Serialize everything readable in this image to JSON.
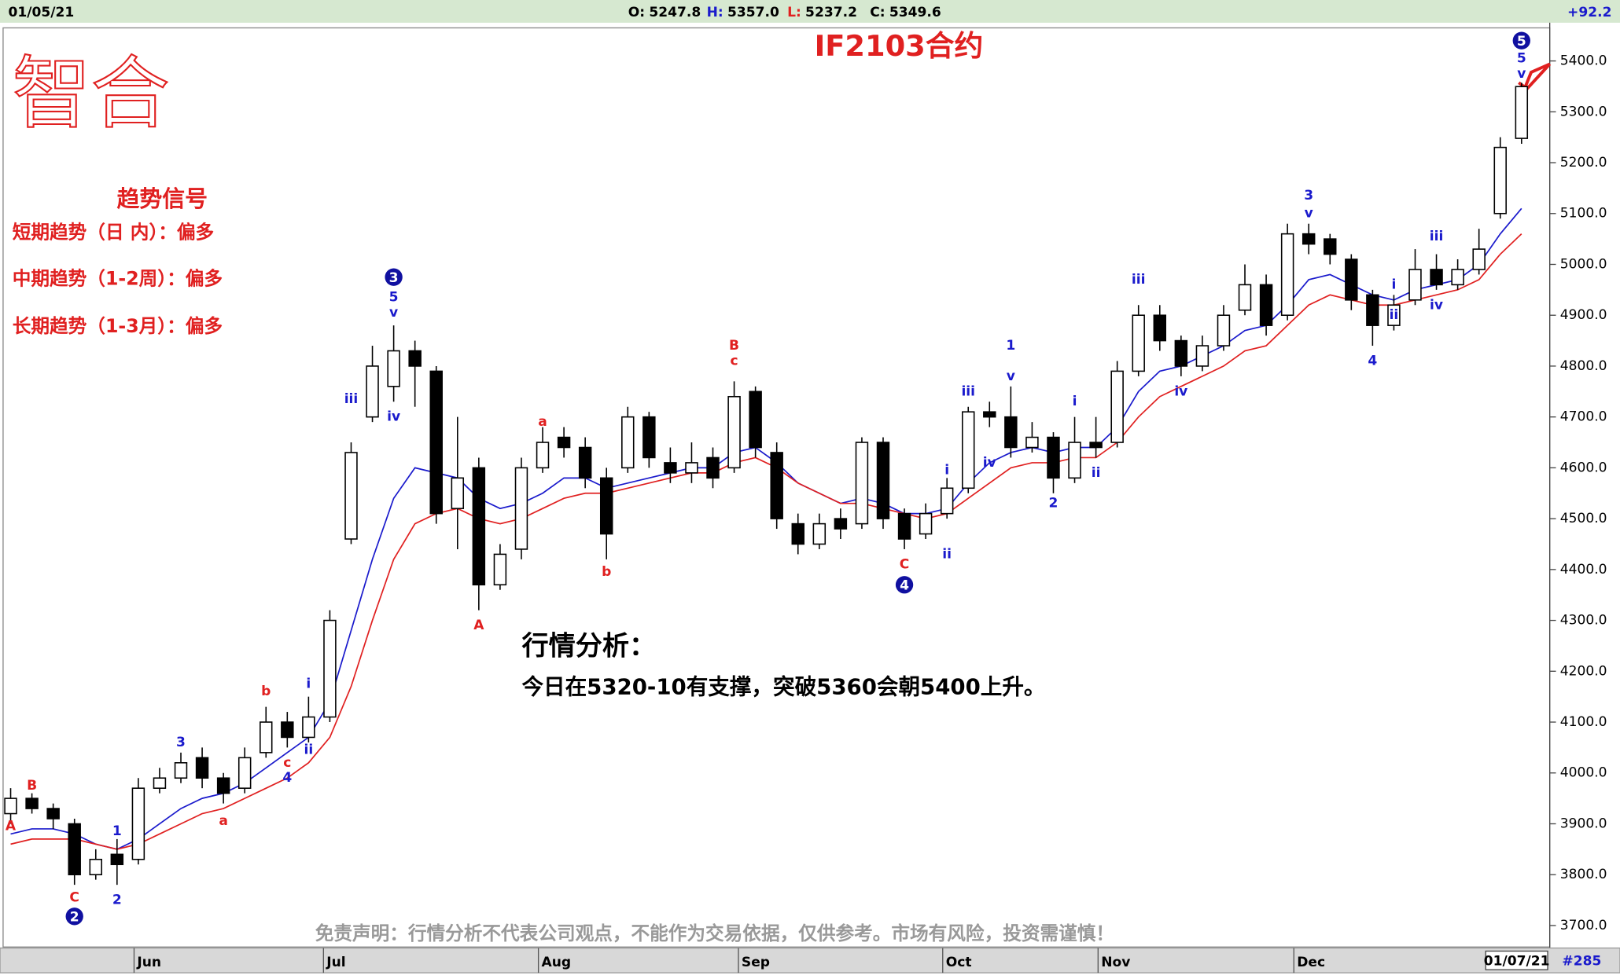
{
  "header": {
    "date": "01/05/21",
    "items": [
      {
        "label": "O:",
        "value": "5247.8"
      },
      {
        "label": "H:",
        "value": "5357.0"
      },
      {
        "label": "L:",
        "value": "5237.2"
      },
      {
        "label": "C:",
        "value": "5349.6"
      }
    ],
    "change": "+92.2"
  },
  "logo": "智合",
  "signals": {
    "title": "趋势信号",
    "rows": [
      "短期趋势（日 内）：偏多",
      "中期趋势（1-2周）：偏多",
      "长期趋势（1-3月）：偏多"
    ]
  },
  "analysis": {
    "title": "行情分析：",
    "text": "今日在5320-10有支撑，突破5360会朝5400上升。"
  },
  "disclaimer": "免责声明：行情分析不代表公司观点，不能作为交易依据，仅供参考。市场有风险，投资需谨慎！",
  "footer": {
    "date": "01/07/21",
    "count": "#285"
  },
  "chart_data": {
    "type": "candlestick",
    "title": "IF2103合约",
    "up_color": "#ffffff",
    "down_color": "#000000",
    "xlim": [
      -0.5,
      71.5
    ],
    "xticks": [
      {
        "value": 5.8,
        "label": "Jun"
      },
      {
        "value": 14.7,
        "label": "Jul"
      },
      {
        "value": 24.8,
        "label": "Aug"
      },
      {
        "value": 34.2,
        "label": "Sep"
      },
      {
        "value": 43.8,
        "label": "Oct"
      },
      {
        "value": 51.1,
        "label": "Nov"
      },
      {
        "value": 60.3,
        "label": "Dec"
      }
    ],
    "ylim": [
      3672,
      5463
    ],
    "yticks": [
      {
        "value": 3700,
        "label": "3700.0"
      },
      {
        "value": 3800,
        "label": "3800.0"
      },
      {
        "value": 3900,
        "label": "3900.0"
      },
      {
        "value": 4000,
        "label": "4000.0"
      },
      {
        "value": 4100,
        "label": "4100.0"
      },
      {
        "value": 4200,
        "label": "4200.0"
      },
      {
        "value": 4300,
        "label": "4300.0"
      },
      {
        "value": 4400,
        "label": "4400.0"
      },
      {
        "value": 4500,
        "label": "4500.0"
      },
      {
        "value": 4600,
        "label": "4600.0"
      },
      {
        "value": 4700,
        "label": "4700.0"
      },
      {
        "value": 4800,
        "label": "4800.0"
      },
      {
        "value": 4900,
        "label": "4900.0"
      },
      {
        "value": 5000,
        "label": "5000.0"
      },
      {
        "value": 5100,
        "label": "5100.0"
      },
      {
        "value": 5200,
        "label": "5200.0"
      },
      {
        "value": 5300,
        "label": "5300.0"
      },
      {
        "value": 5400,
        "label": "5400.0"
      }
    ],
    "open": [
      3920,
      3950,
      3930,
      3900,
      3800,
      3840,
      3830,
      3970,
      3990,
      4030,
      3990,
      3970,
      4040,
      4100,
      4070,
      4110,
      4460,
      4700,
      4760,
      4830,
      4790,
      4520,
      4600,
      4370,
      4440,
      4600,
      4660,
      4640,
      4580,
      4600,
      4700,
      4610,
      4590,
      4620,
      4600,
      4750,
      4630,
      4490,
      4450,
      4500,
      4490,
      4650,
      4510,
      4470,
      4510,
      4560,
      4710,
      4700,
      4640,
      4660,
      4580,
      4650,
      4650,
      4790,
      4900,
      4850,
      4800,
      4840,
      4910,
      4960,
      4900,
      5060,
      5050,
      5010,
      4940,
      4880,
      4930,
      4990,
      4960,
      4990,
      5100,
      5247.8
    ],
    "high": [
      3970,
      3960,
      3940,
      3910,
      3850,
      3870,
      3990,
      4010,
      4040,
      4050,
      4000,
      4050,
      4130,
      4120,
      4150,
      4320,
      4650,
      4840,
      4880,
      4850,
      4800,
      4700,
      4620,
      4450,
      4620,
      4680,
      4680,
      4660,
      4600,
      4720,
      4710,
      4640,
      4650,
      4640,
      4770,
      4760,
      4650,
      4510,
      4510,
      4520,
      4660,
      4660,
      4520,
      4530,
      4580,
      4720,
      4730,
      4760,
      4690,
      4670,
      4700,
      4700,
      4810,
      4920,
      4920,
      4860,
      4860,
      4920,
      5000,
      4980,
      5080,
      5080,
      5060,
      5020,
      4950,
      4940,
      5030,
      5020,
      5010,
      5070,
      5250,
      5357.0
    ],
    "low": [
      3900,
      3920,
      3890,
      3780,
      3790,
      3780,
      3820,
      3960,
      3980,
      3970,
      3940,
      3960,
      4030,
      4050,
      4060,
      4100,
      4450,
      4690,
      4730,
      4720,
      4490,
      4440,
      4320,
      4360,
      4420,
      4590,
      4620,
      4560,
      4420,
      4590,
      4600,
      4570,
      4570,
      4560,
      4590,
      4620,
      4480,
      4430,
      4440,
      4460,
      4480,
      4480,
      4440,
      4460,
      4500,
      4550,
      4680,
      4620,
      4630,
      4550,
      4570,
      4620,
      4640,
      4780,
      4830,
      4780,
      4790,
      4830,
      4900,
      4860,
      4890,
      5020,
      5000,
      4910,
      4840,
      4870,
      4920,
      4950,
      4950,
      4980,
      5090,
      5237.2
    ],
    "close": [
      3950,
      3930,
      3910,
      3800,
      3830,
      3820,
      3970,
      3990,
      4020,
      3990,
      3960,
      4030,
      4100,
      4070,
      4110,
      4300,
      4630,
      4800,
      4830,
      4800,
      4510,
      4580,
      4370,
      4430,
      4600,
      4650,
      4640,
      4580,
      4470,
      4700,
      4620,
      4590,
      4610,
      4580,
      4740,
      4640,
      4500,
      4450,
      4490,
      4480,
      4650,
      4500,
      4460,
      4510,
      4560,
      4710,
      4700,
      4640,
      4660,
      4580,
      4650,
      4640,
      4790,
      4900,
      4850,
      4800,
      4840,
      4900,
      4960,
      4880,
      5060,
      5040,
      5020,
      4930,
      4880,
      4920,
      4990,
      4960,
      4990,
      5030,
      5230,
      5349.6
    ],
    "moving_averages": [
      {
        "color": "#1a1acc",
        "values": [
          3880,
          3890,
          3890,
          3880,
          3860,
          3850,
          3870,
          3900,
          3930,
          3950,
          3960,
          3980,
          4010,
          4040,
          4070,
          4140,
          4280,
          4420,
          4540,
          4600,
          4590,
          4580,
          4540,
          4520,
          4530,
          4550,
          4580,
          4580,
          4560,
          4570,
          4580,
          4590,
          4600,
          4600,
          4630,
          4640,
          4610,
          4570,
          4550,
          4530,
          4540,
          4530,
          4510,
          4510,
          4520,
          4570,
          4610,
          4630,
          4640,
          4630,
          4640,
          4640,
          4680,
          4750,
          4790,
          4800,
          4820,
          4840,
          4870,
          4880,
          4920,
          4970,
          4980,
          4960,
          4940,
          4930,
          4950,
          4960,
          4970,
          5000,
          5060,
          5110
        ]
      },
      {
        "color": "#e02020",
        "values": [
          3860,
          3870,
          3870,
          3870,
          3860,
          3850,
          3860,
          3880,
          3900,
          3920,
          3930,
          3950,
          3970,
          3990,
          4020,
          4070,
          4170,
          4300,
          4420,
          4490,
          4510,
          4520,
          4500,
          4490,
          4500,
          4520,
          4540,
          4550,
          4550,
          4560,
          4570,
          4580,
          4590,
          4590,
          4610,
          4620,
          4600,
          4570,
          4550,
          4530,
          4530,
          4520,
          4510,
          4500,
          4510,
          4540,
          4570,
          4600,
          4610,
          4610,
          4620,
          4620,
          4650,
          4700,
          4740,
          4760,
          4780,
          4800,
          4830,
          4840,
          4880,
          4920,
          4940,
          4930,
          4920,
          4920,
          4930,
          4940,
          4950,
          4970,
          5020,
          5060
        ]
      }
    ],
    "annotations": [
      {
        "text": "A",
        "x": 0,
        "y": 3895,
        "color": "#e02020"
      },
      {
        "text": "B",
        "x": 1,
        "y": 3975,
        "color": "#e02020"
      },
      {
        "text": "C",
        "x": 3,
        "y": 3755,
        "color": "#e02020"
      },
      {
        "text": "2",
        "x": 3,
        "y": 3718,
        "color": "#1a1acc",
        "circle": true
      },
      {
        "text": "1",
        "x": 5,
        "y": 3885,
        "color": "#1a1acc"
      },
      {
        "text": "2",
        "x": 5,
        "y": 3750,
        "color": "#1a1acc"
      },
      {
        "text": "3",
        "x": 8,
        "y": 4060,
        "color": "#1a1acc"
      },
      {
        "text": "a",
        "x": 10,
        "y": 3905,
        "color": "#e02020"
      },
      {
        "text": "b",
        "x": 12,
        "y": 4160,
        "color": "#e02020"
      },
      {
        "text": "c",
        "x": 13,
        "y": 4020,
        "color": "#e02020"
      },
      {
        "text": "4",
        "x": 13,
        "y": 3990,
        "color": "#1a1acc"
      },
      {
        "text": "i",
        "x": 14,
        "y": 4175,
        "color": "#1a1acc"
      },
      {
        "text": "ii",
        "x": 14,
        "y": 4045,
        "color": "#1a1acc"
      },
      {
        "text": "iii",
        "x": 16,
        "y": 4735,
        "color": "#1a1acc"
      },
      {
        "text": "iv",
        "x": 18,
        "y": 4700,
        "color": "#1a1acc"
      },
      {
        "text": "v",
        "x": 18,
        "y": 4905,
        "color": "#1a1acc"
      },
      {
        "text": "5",
        "x": 18,
        "y": 4935,
        "color": "#1a1acc"
      },
      {
        "text": "3",
        "x": 18,
        "y": 4975,
        "color": "#1a1acc",
        "circle": true
      },
      {
        "text": "A",
        "x": 22,
        "y": 4290,
        "color": "#e02020"
      },
      {
        "text": "a",
        "x": 25,
        "y": 4690,
        "color": "#e02020"
      },
      {
        "text": "b",
        "x": 28,
        "y": 4395,
        "color": "#e02020"
      },
      {
        "text": "B",
        "x": 34,
        "y": 4840,
        "color": "#e02020"
      },
      {
        "text": "c",
        "x": 34,
        "y": 4810,
        "color": "#e02020"
      },
      {
        "text": "C",
        "x": 42,
        "y": 4410,
        "color": "#e02020"
      },
      {
        "text": "4",
        "x": 42,
        "y": 4370,
        "color": "#1a1acc",
        "circle": true
      },
      {
        "text": "i",
        "x": 44,
        "y": 4595,
        "color": "#1a1acc"
      },
      {
        "text": "ii",
        "x": 44,
        "y": 4430,
        "color": "#1a1acc"
      },
      {
        "text": "iii",
        "x": 45,
        "y": 4750,
        "color": "#1a1acc"
      },
      {
        "text": "iv",
        "x": 46,
        "y": 4610,
        "color": "#1a1acc"
      },
      {
        "text": "1",
        "x": 47,
        "y": 4840,
        "color": "#1a1acc"
      },
      {
        "text": "v",
        "x": 47,
        "y": 4780,
        "color": "#1a1acc"
      },
      {
        "text": "2",
        "x": 49,
        "y": 4530,
        "color": "#1a1acc"
      },
      {
        "text": "i",
        "x": 50,
        "y": 4730,
        "color": "#1a1acc"
      },
      {
        "text": "ii",
        "x": 51,
        "y": 4590,
        "color": "#1a1acc"
      },
      {
        "text": "iii",
        "x": 53,
        "y": 4970,
        "color": "#1a1acc"
      },
      {
        "text": "iv",
        "x": 55,
        "y": 4750,
        "color": "#1a1acc"
      },
      {
        "text": "3",
        "x": 61,
        "y": 5135,
        "color": "#1a1acc"
      },
      {
        "text": "v",
        "x": 61,
        "y": 5100,
        "color": "#1a1acc"
      },
      {
        "text": "4",
        "x": 64,
        "y": 4810,
        "color": "#1a1acc"
      },
      {
        "text": "i",
        "x": 65,
        "y": 4960,
        "color": "#1a1acc"
      },
      {
        "text": "ii",
        "x": 65,
        "y": 4900,
        "color": "#1a1acc"
      },
      {
        "text": "iii",
        "x": 67,
        "y": 5055,
        "color": "#1a1acc"
      },
      {
        "text": "iv",
        "x": 67,
        "y": 4920,
        "color": "#1a1acc"
      },
      {
        "text": "v",
        "x": 71,
        "y": 5375,
        "color": "#1a1acc"
      },
      {
        "text": "5",
        "x": 71,
        "y": 5405,
        "color": "#1a1acc"
      },
      {
        "text": "5",
        "x": 71,
        "y": 5440,
        "color": "#1a1acc",
        "circle": true
      }
    ]
  }
}
